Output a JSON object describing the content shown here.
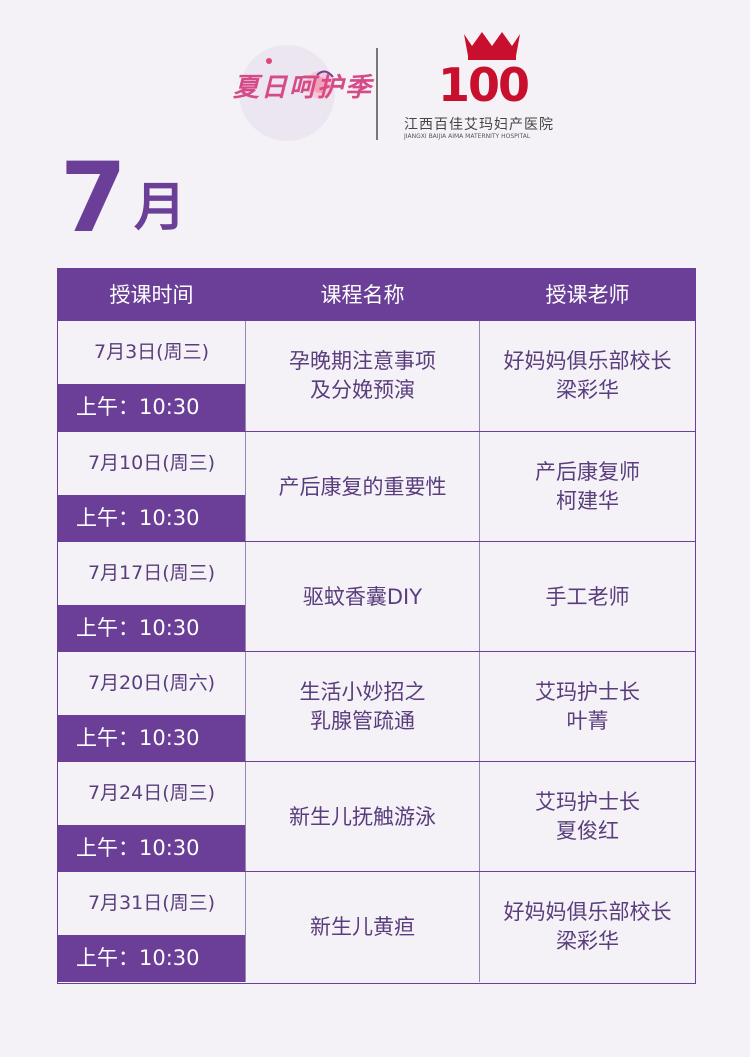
{
  "header": {
    "campaign_logo_text": "夏日呵护季",
    "hospital_logo_number": "100",
    "hospital_name_cn": "江西百佳艾玛妇产医院",
    "hospital_name_en": "JIANGXI BAIJIA AIMA MATERNITY HOSPITAL"
  },
  "month": {
    "number": "7",
    "unit": "月"
  },
  "table": {
    "headers": [
      "授课时间",
      "课程名称",
      "授课老师"
    ],
    "rows": [
      {
        "date": "7月3日(周三)",
        "time": "上午：10:30",
        "course": [
          "孕晚期注意事项",
          "及分娩预演"
        ],
        "teacher": [
          "好妈妈俱乐部校长",
          "梁彩华"
        ]
      },
      {
        "date": "7月10日(周三)",
        "time": "上午：10:30",
        "course": [
          "产后康复的重要性"
        ],
        "teacher": [
          "产后康复师",
          "柯建华"
        ]
      },
      {
        "date": "7月17日(周三)",
        "time": "上午：10:30",
        "course": [
          "驱蚊香囊DIY"
        ],
        "teacher": [
          "手工老师"
        ]
      },
      {
        "date": "7月20日(周六)",
        "time": "上午：10:30",
        "course": [
          "生活小妙招之",
          "乳腺管疏通"
        ],
        "teacher": [
          "艾玛护士长",
          "叶菁"
        ]
      },
      {
        "date": "7月24日(周三)",
        "time": "上午：10:30",
        "course": [
          "新生儿抚触游泳"
        ],
        "teacher": [
          "艾玛护士长",
          "夏俊红"
        ]
      },
      {
        "date": "7月31日(周三)",
        "time": "上午：10:30",
        "course": [
          "新生儿黄疸"
        ],
        "teacher": [
          "好妈妈俱乐部校长",
          "梁彩华"
        ]
      }
    ]
  },
  "colors": {
    "primary": "#6b3f97",
    "text": "#5a3d7d",
    "background": "#f4f2f7",
    "crown": "#c8102e"
  }
}
